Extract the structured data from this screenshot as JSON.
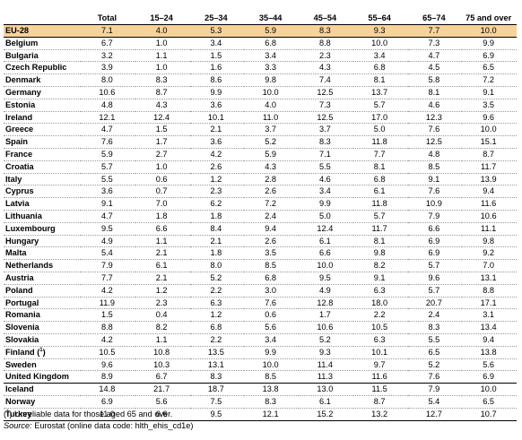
{
  "columns": [
    "",
    "Total",
    "15–24",
    "25–34",
    "35–44",
    "45–54",
    "55–64",
    "65–74",
    "75 and over"
  ],
  "rows": [
    {
      "name": "EU-28",
      "values": [
        "7.1",
        "4.0",
        "5.3",
        "5.9",
        "8.3",
        "9.3",
        "7.7",
        "10.0"
      ]
    },
    {
      "name": "Belgium",
      "values": [
        "6.7",
        "1.0",
        "3.4",
        "6.8",
        "8.8",
        "10.0",
        "7.3",
        "9.9"
      ]
    },
    {
      "name": "Bulgaria",
      "values": [
        "3.2",
        "1.1",
        "1.5",
        "3.4",
        "2.3",
        "3.4",
        "4.7",
        "6.9"
      ]
    },
    {
      "name": "Czech Republic",
      "values": [
        "3.9",
        "1.0",
        "1.6",
        "3.3",
        "4.3",
        "6.8",
        "4.5",
        "6.5"
      ]
    },
    {
      "name": "Denmark",
      "values": [
        "8.0",
        "8.3",
        "8.6",
        "9.8",
        "7.4",
        "8.1",
        "5.8",
        "7.2"
      ]
    },
    {
      "name": "Germany",
      "values": [
        "10.6",
        "8.7",
        "9.9",
        "10.0",
        "12.5",
        "13.7",
        "8.1",
        "9.1"
      ]
    },
    {
      "name": "Estonia",
      "values": [
        "4.8",
        "4.3",
        "3.6",
        "4.0",
        "7.3",
        "5.7",
        "4.6",
        "3.5"
      ]
    },
    {
      "name": "Ireland",
      "values": [
        "12.1",
        "12.4",
        "10.1",
        "11.0",
        "12.5",
        "17.0",
        "12.3",
        "9.6"
      ]
    },
    {
      "name": "Greece",
      "values": [
        "4.7",
        "1.5",
        "2.1",
        "3.7",
        "3.7",
        "5.0",
        "7.6",
        "10.0"
      ]
    },
    {
      "name": "Spain",
      "values": [
        "7.6",
        "1.7",
        "3.6",
        "5.2",
        "8.3",
        "11.8",
        "12.5",
        "15.1"
      ]
    },
    {
      "name": "France",
      "values": [
        "5.9",
        "2.7",
        "4.2",
        "5.9",
        "7.1",
        "7.7",
        "4.8",
        "8.7"
      ]
    },
    {
      "name": "Croatia",
      "values": [
        "5.7",
        "1.0",
        "2.6",
        "4.3",
        "5.5",
        "8.1",
        "8.5",
        "11.7"
      ]
    },
    {
      "name": "Italy",
      "values": [
        "5.5",
        "0.6",
        "1.2",
        "2.8",
        "4.6",
        "6.8",
        "9.1",
        "13.9"
      ]
    },
    {
      "name": "Cyprus",
      "values": [
        "3.6",
        "0.7",
        "2.3",
        "2.6",
        "3.4",
        "6.1",
        "7.6",
        "9.4"
      ]
    },
    {
      "name": "Latvia",
      "values": [
        "9.1",
        "7.0",
        "6.2",
        "7.2",
        "9.9",
        "11.8",
        "10.9",
        "11.6"
      ]
    },
    {
      "name": "Lithuania",
      "values": [
        "4.7",
        "1.8",
        "1.8",
        "2.4",
        "5.0",
        "5.7",
        "7.9",
        "10.6"
      ]
    },
    {
      "name": "Luxembourg",
      "values": [
        "9.5",
        "6.6",
        "8.4",
        "9.4",
        "12.4",
        "11.7",
        "6.6",
        "11.1"
      ]
    },
    {
      "name": "Hungary",
      "values": [
        "4.9",
        "1.1",
        "2.1",
        "2.6",
        "6.1",
        "8.1",
        "6.9",
        "9.8"
      ]
    },
    {
      "name": "Malta",
      "values": [
        "5.4",
        "2.1",
        "1.8",
        "3.5",
        "6.6",
        "9.8",
        "6.9",
        "9.2"
      ]
    },
    {
      "name": "Netherlands",
      "values": [
        "7.9",
        "6.1",
        "8.0",
        "8.5",
        "10.0",
        "8.2",
        "5.7",
        "7.0"
      ]
    },
    {
      "name": "Austria",
      "values": [
        "7.7",
        "2.1",
        "5.2",
        "6.8",
        "9.5",
        "9.1",
        "9.6",
        "13.1"
      ]
    },
    {
      "name": "Poland",
      "values": [
        "4.2",
        "1.2",
        "2.2",
        "3.0",
        "4.9",
        "6.3",
        "5.7",
        "8.8"
      ]
    },
    {
      "name": "Portugal",
      "values": [
        "11.9",
        "2.3",
        "6.3",
        "7.6",
        "12.8",
        "18.0",
        "20.7",
        "17.1"
      ]
    },
    {
      "name": "Romania",
      "values": [
        "1.5",
        "0.4",
        "1.2",
        "0.6",
        "1.7",
        "2.2",
        "2.4",
        "3.1"
      ]
    },
    {
      "name": "Slovenia",
      "values": [
        "8.8",
        "8.2",
        "6.8",
        "5.6",
        "10.6",
        "10.5",
        "8.3",
        "13.4"
      ]
    },
    {
      "name": "Slovakia",
      "values": [
        "4.2",
        "1.1",
        "2.2",
        "3.4",
        "5.2",
        "6.3",
        "5.5",
        "9.4"
      ]
    },
    {
      "name": "Finland",
      "footnote": "1",
      "values": [
        "10.5",
        "10.8",
        "13.5",
        "9.9",
        "9.3",
        "10.1",
        "6.5",
        "13.8"
      ]
    },
    {
      "name": "Sweden",
      "values": [
        "9.6",
        "10.3",
        "13.1",
        "10.0",
        "11.4",
        "9.7",
        "5.2",
        "5.6"
      ]
    },
    {
      "name": "United Kingdom",
      "values": [
        "8.9",
        "6.7",
        "8.3",
        "8.5",
        "11.3",
        "11.6",
        "7.6",
        "6.9"
      ]
    },
    {
      "name": "Iceland",
      "values": [
        "14.8",
        "21.7",
        "18.7",
        "13.8",
        "13.0",
        "11.5",
        "7.9",
        "10.0"
      ]
    },
    {
      "name": "Norway",
      "values": [
        "6.9",
        "5.6",
        "7.5",
        "8.3",
        "6.1",
        "8.7",
        "5.4",
        "6.5"
      ]
    },
    {
      "name": "Turkey",
      "values": [
        "11.0",
        "6.6",
        "9.5",
        "12.1",
        "15.2",
        "13.2",
        "12.7",
        "10.7"
      ]
    }
  ],
  "notes": {
    "footnote_marker": "1",
    "footnote_text": "Unreliable data for those aged 65 and over.",
    "source_label": "Source:",
    "source_text": "Eurostat (online data code: hlth_ehis_cd1e)"
  },
  "colors": {
    "eu_row_highlight": "#f6d39a"
  }
}
